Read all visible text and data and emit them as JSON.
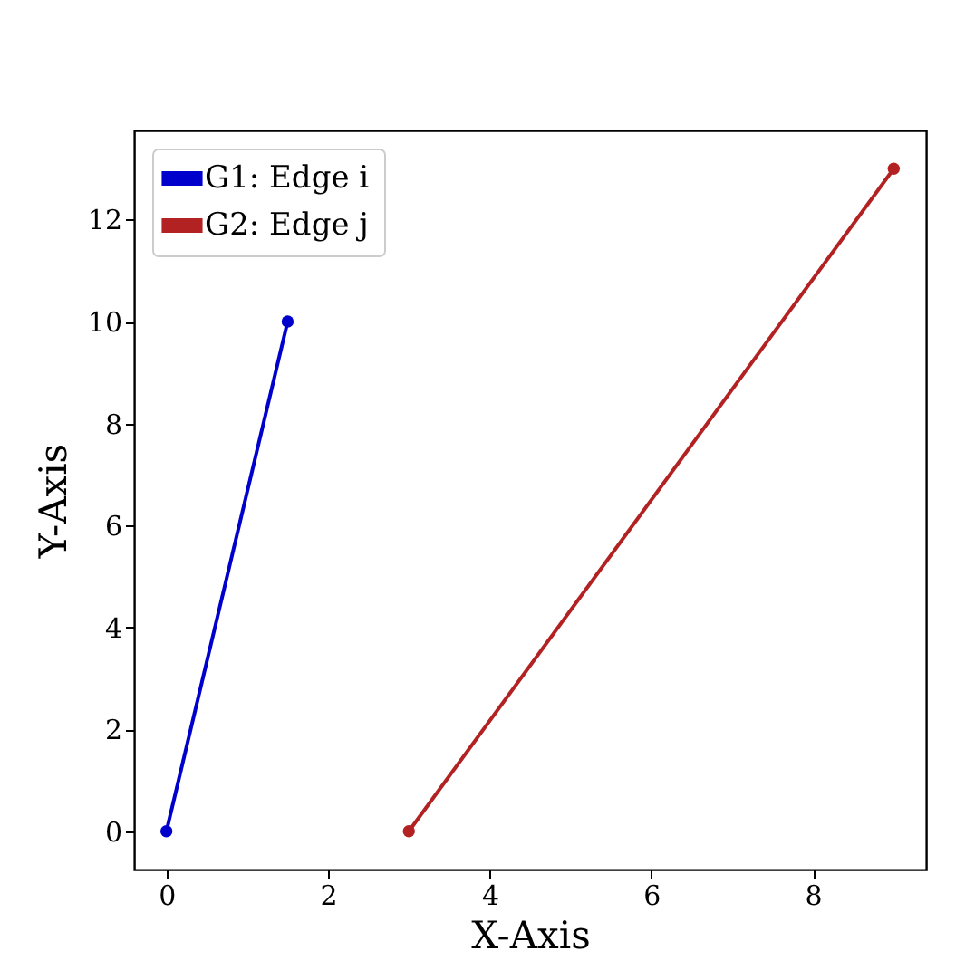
{
  "chart_data": {
    "type": "line",
    "xlabel": "X-Axis",
    "ylabel": "Y-Axis",
    "series": [
      {
        "name": "G1: Edge i",
        "color": "#0000cd",
        "x": [
          0,
          1.5
        ],
        "values": [
          0,
          10
        ]
      },
      {
        "name": "G2: Edge j",
        "color": "#b22222",
        "x": [
          3,
          9
        ],
        "values": [
          0,
          13
        ]
      }
    ],
    "xlim": [
      -0.4,
      9.4
    ],
    "ylim": [
      -0.75,
      13.75
    ],
    "xticks": [
      0,
      2,
      4,
      6,
      8
    ],
    "yticks": [
      0,
      2,
      4,
      6,
      8,
      10,
      12
    ],
    "grid": false,
    "legend": "top left",
    "marker": "circle",
    "line_style": "solid"
  }
}
